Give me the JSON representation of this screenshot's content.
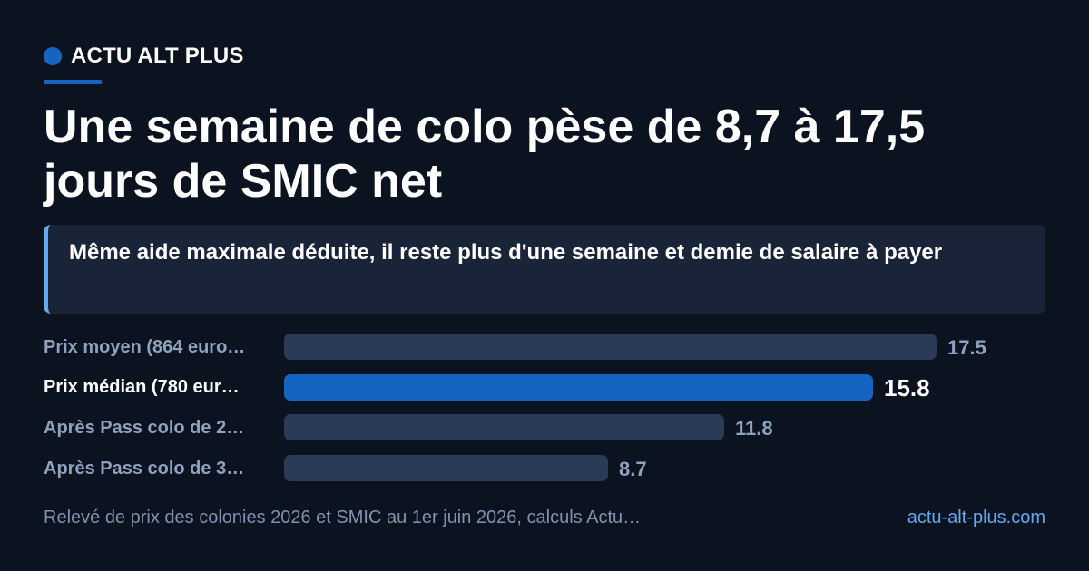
{
  "brand": {
    "name": "ACTU ALT PLUS"
  },
  "title": "Une semaine de colo pèse de 8,7 à 17,5 jours de SMIC net",
  "subtitle": "Même aide maximale déduite, il reste plus d'une semaine et demie de salaire à payer",
  "chart_data": {
    "type": "bar",
    "orientation": "horizontal",
    "categories": [
      "Prix moyen (864 euro…",
      "Prix médian (780 eur…",
      "Après Pass colo de 2…",
      "Après Pass colo de 3…"
    ],
    "values": [
      17.5,
      15.8,
      11.8,
      8.7
    ],
    "value_labels": [
      "17.5",
      "15.8",
      "11.8",
      "8.7"
    ],
    "highlight_index": 1,
    "xlim": [
      0,
      17.5
    ],
    "colors": {
      "bar": "#2b3a55",
      "highlight": "#1565c0",
      "label": "#8ea2bd"
    }
  },
  "footer": {
    "source": "Relevé de prix des colonies 2026 et SMIC au 1er juin 2026, calculs Actu…",
    "site": "actu-alt-plus.com"
  }
}
